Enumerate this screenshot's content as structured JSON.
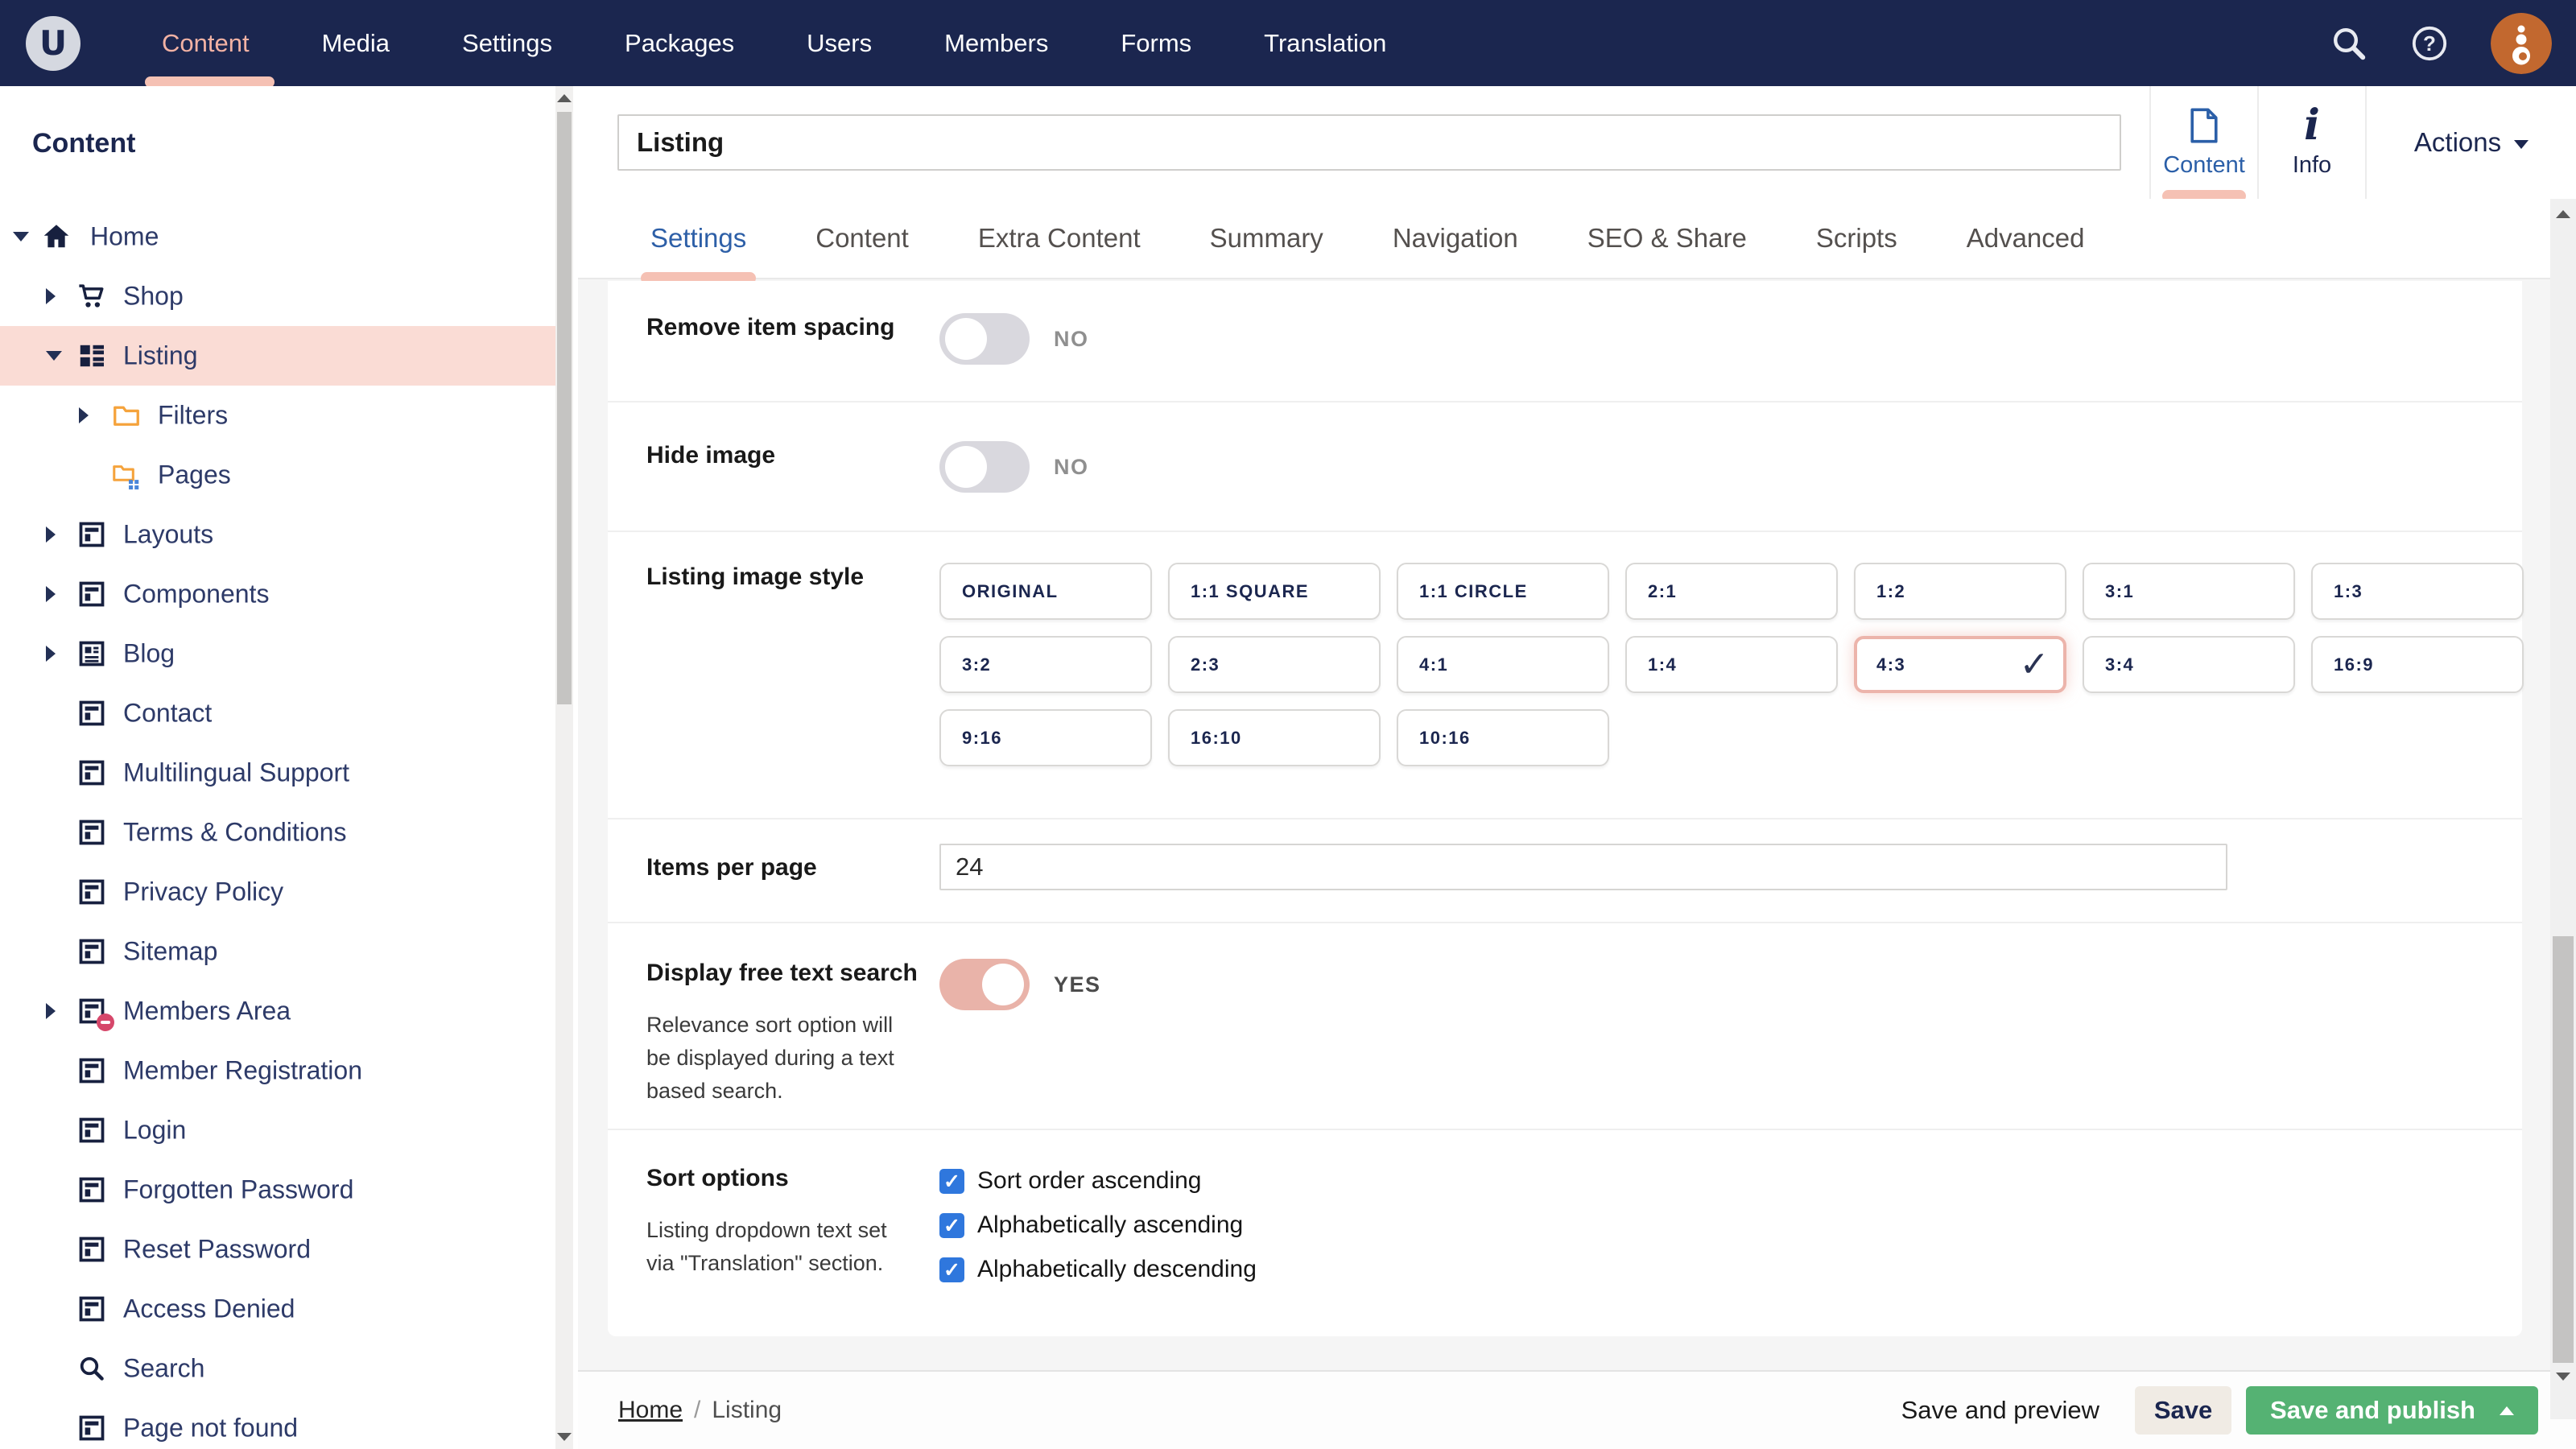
{
  "topnav": {
    "items": [
      {
        "label": "Content",
        "active": true
      },
      {
        "label": "Media",
        "active": false
      },
      {
        "label": "Settings",
        "active": false
      },
      {
        "label": "Packages",
        "active": false
      },
      {
        "label": "Users",
        "active": false
      },
      {
        "label": "Members",
        "active": false
      },
      {
        "label": "Forms",
        "active": false
      },
      {
        "label": "Translation",
        "active": false
      }
    ],
    "logo_letter": "U",
    "icons": [
      "search-icon",
      "help-icon",
      "user-avatar"
    ]
  },
  "sidebar": {
    "section_title": "Content",
    "tree": [
      {
        "label": "Home",
        "icon": "home-icon",
        "level": 0,
        "caret": "expanded",
        "selected": false
      },
      {
        "label": "Shop",
        "icon": "cart-icon",
        "level": 1,
        "caret": "collapsed",
        "selected": false
      },
      {
        "label": "Listing",
        "icon": "grid-icon",
        "level": 1,
        "caret": "expanded",
        "selected": true
      },
      {
        "label": "Filters",
        "icon": "folder-icon",
        "level": 2,
        "caret": "collapsed",
        "selected": false
      },
      {
        "label": "Pages",
        "icon": "folder-grid-icon",
        "level": 2,
        "caret": "none",
        "selected": false
      },
      {
        "label": "Layouts",
        "icon": "layout-icon",
        "level": 1,
        "caret": "collapsed",
        "selected": false
      },
      {
        "label": "Components",
        "icon": "layout-icon",
        "level": 1,
        "caret": "collapsed",
        "selected": false
      },
      {
        "label": "Blog",
        "icon": "article-icon",
        "level": 1,
        "caret": "collapsed",
        "selected": false
      },
      {
        "label": "Contact",
        "icon": "layout-icon",
        "level": 1,
        "caret": "none",
        "selected": false
      },
      {
        "label": "Multilingual Support",
        "icon": "layout-icon",
        "level": 1,
        "caret": "none",
        "selected": false
      },
      {
        "label": "Terms & Conditions",
        "icon": "layout-icon",
        "level": 1,
        "caret": "none",
        "selected": false
      },
      {
        "label": "Privacy Policy",
        "icon": "layout-icon",
        "level": 1,
        "caret": "none",
        "selected": false
      },
      {
        "label": "Sitemap",
        "icon": "layout-icon",
        "level": 1,
        "caret": "none",
        "selected": false
      },
      {
        "label": "Members Area",
        "icon": "layout-icon",
        "level": 1,
        "caret": "collapsed",
        "selected": false,
        "badge": "restricted"
      },
      {
        "label": "Member Registration",
        "icon": "layout-icon",
        "level": 1,
        "caret": "none",
        "selected": false
      },
      {
        "label": "Login",
        "icon": "layout-icon",
        "level": 1,
        "caret": "none",
        "selected": false
      },
      {
        "label": "Forgotten Password",
        "icon": "layout-icon",
        "level": 1,
        "caret": "none",
        "selected": false
      },
      {
        "label": "Reset Password",
        "icon": "layout-icon",
        "level": 1,
        "caret": "none",
        "selected": false
      },
      {
        "label": "Access Denied",
        "icon": "layout-icon",
        "level": 1,
        "caret": "none",
        "selected": false
      },
      {
        "label": "Search",
        "icon": "search-icon",
        "level": 1,
        "caret": "none",
        "selected": false
      },
      {
        "label": "Page not found",
        "icon": "layout-icon",
        "level": 1,
        "caret": "none",
        "selected": false
      }
    ]
  },
  "header": {
    "title_value": "Listing",
    "apps": [
      {
        "label": "Content",
        "icon": "document-icon",
        "active": true
      },
      {
        "label": "Info",
        "icon": "info-icon",
        "active": false
      }
    ],
    "actions_label": "Actions"
  },
  "tabs": [
    {
      "label": "Settings",
      "active": true
    },
    {
      "label": "Content",
      "active": false
    },
    {
      "label": "Extra Content",
      "active": false
    },
    {
      "label": "Summary",
      "active": false
    },
    {
      "label": "Navigation",
      "active": false
    },
    {
      "label": "SEO & Share",
      "active": false
    },
    {
      "label": "Scripts",
      "active": false
    },
    {
      "label": "Advanced",
      "active": false
    }
  ],
  "form": {
    "remove_item_spacing": {
      "label": "Remove item spacing",
      "value": "NO",
      "on": false
    },
    "hide_image": {
      "label": "Hide image",
      "value": "NO",
      "on": false
    },
    "listing_image_style": {
      "label": "Listing image style",
      "options": [
        "ORIGINAL",
        "1:1 SQUARE",
        "1:1 CIRCLE",
        "2:1",
        "1:2",
        "3:1",
        "1:3",
        "3:2",
        "2:3",
        "4:1",
        "1:4",
        "4:3",
        "3:4",
        "16:9",
        "9:16",
        "16:10",
        "10:16"
      ],
      "selected": "4:3"
    },
    "items_per_page": {
      "label": "Items per page",
      "value": "24"
    },
    "display_free_text_search": {
      "label": "Display free text search",
      "description": "Relevance sort option will be displayed during a text based search.",
      "value": "YES",
      "on": true
    },
    "sort_options": {
      "label": "Sort options",
      "description": "Listing dropdown text set via \"Translation\" section.",
      "checkboxes": [
        {
          "label": "Sort order ascending",
          "checked": true
        },
        {
          "label": "Alphabetically ascending",
          "checked": true
        },
        {
          "label": "Alphabetically descending",
          "checked": true
        }
      ]
    }
  },
  "footer": {
    "breadcrumb": {
      "home": "Home",
      "separator": "/",
      "current": "Listing"
    },
    "save_and_preview": "Save and preview",
    "save": "Save",
    "save_and_publish": "Save and publish"
  },
  "colors": {
    "navy": "#1b264f",
    "salmon_accent": "#f5c1b4",
    "selected_row": "#fadcd5",
    "link_blue": "#2d5fa7",
    "toggle_on": "#e9b3a9",
    "checkbox_blue": "#2f77dd",
    "publish_green": "#55b273",
    "folder_orange": "#f5a33c",
    "avatar_orange": "#c2682f"
  }
}
